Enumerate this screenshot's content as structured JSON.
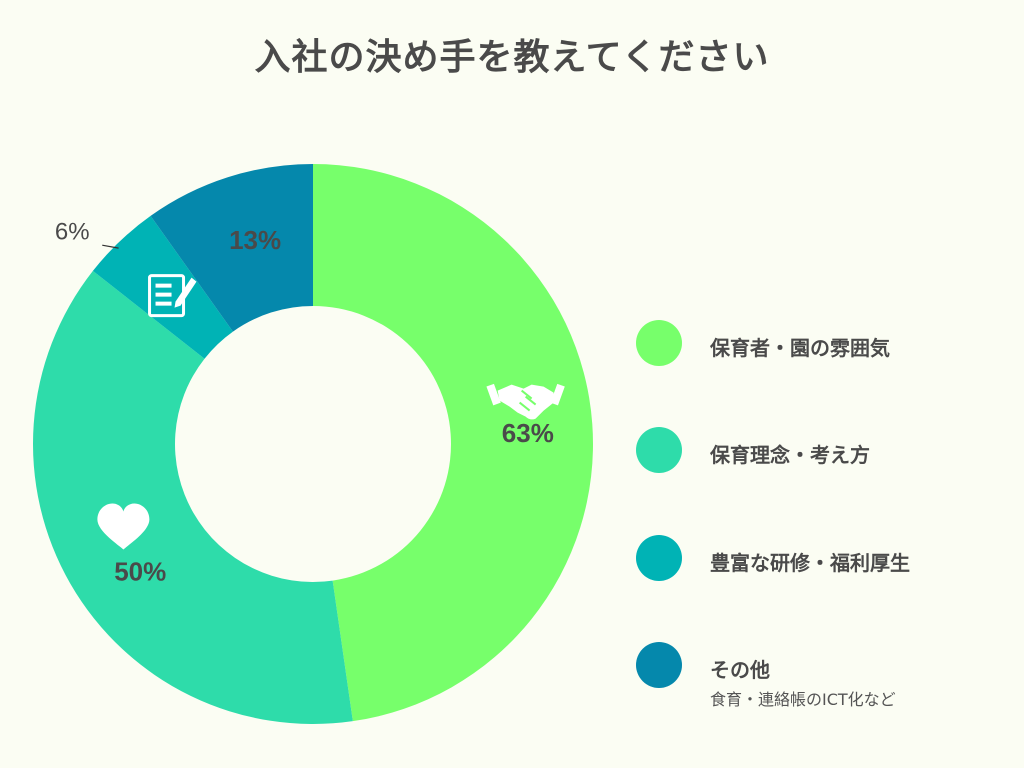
{
  "chart_data": {
    "type": "pie",
    "title": "入社の決め手を教えてください",
    "series": [
      {
        "name": "保育者・園の雰囲気",
        "value": 63,
        "label": "63%",
        "color": "#77ff6b",
        "icon": "handshake-icon"
      },
      {
        "name": "保育理念・考え方",
        "value": 50,
        "label": "50%",
        "color": "#2edcaa",
        "icon": "heart-icon"
      },
      {
        "name": "豊富な研修・福利厚生",
        "value": 6,
        "label": "6%",
        "color": "#00b3b5",
        "icon": "clipboard-pen-icon"
      },
      {
        "name": "その他",
        "value": 13,
        "label": "13%",
        "color": "#0588ac",
        "sub": "食育・連絡帳のICT化など"
      }
    ]
  }
}
